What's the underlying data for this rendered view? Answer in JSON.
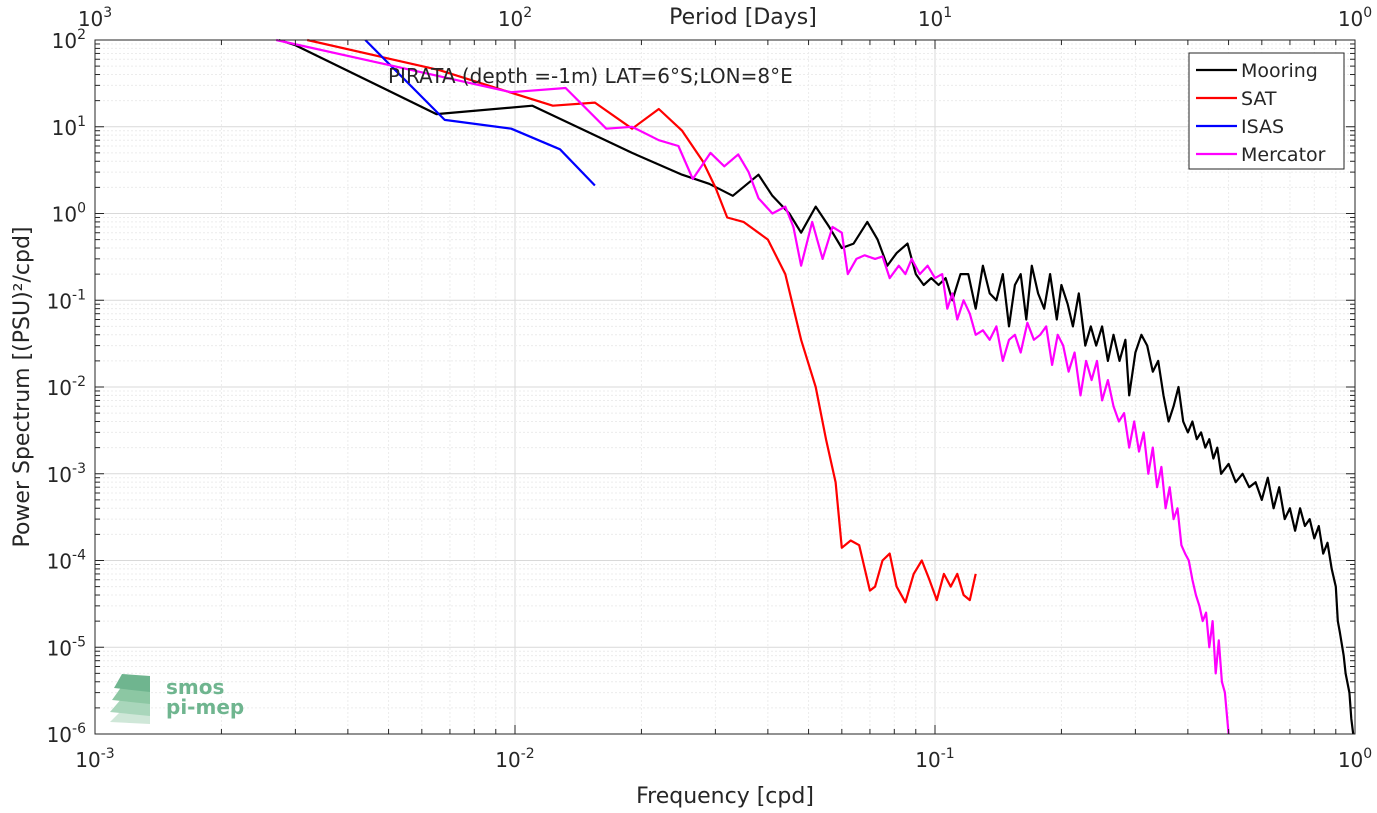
{
  "chart_data": {
    "type": "line",
    "title": "PIRATA (depth =-1m) LAT=6°S;LON=8°E",
    "xlabel": "Frequency [cpd]",
    "ylabel": "Power Spectrum [(PSU)²/cpd]",
    "top_xlabel": "Period [Days]",
    "x_scale": "log",
    "y_scale": "log",
    "xlim": [
      0.001,
      1
    ],
    "ylim": [
      1e-06,
      100
    ],
    "grid": true,
    "legend_position": "top-right",
    "x_ticks": [
      {
        "value": 0.001,
        "base": "10",
        "exp": "-3"
      },
      {
        "value": 0.01,
        "base": "10",
        "exp": "-2"
      },
      {
        "value": 0.1,
        "base": "10",
        "exp": "-1"
      },
      {
        "value": 1,
        "base": "10",
        "exp": "0"
      }
    ],
    "top_ticks": [
      {
        "value": 0.001,
        "base": "10",
        "exp": "3"
      },
      {
        "value": 0.01,
        "base": "10",
        "exp": "2"
      },
      {
        "value": 0.1,
        "base": "10",
        "exp": "1"
      },
      {
        "value": 1,
        "base": "10",
        "exp": "0"
      }
    ],
    "y_ticks": [
      {
        "value": 100,
        "base": "10",
        "exp": "2"
      },
      {
        "value": 10,
        "base": "10",
        "exp": "1"
      },
      {
        "value": 1,
        "base": "10",
        "exp": "0"
      },
      {
        "value": 0.1,
        "base": "10",
        "exp": "-1"
      },
      {
        "value": 0.01,
        "base": "10",
        "exp": "-2"
      },
      {
        "value": 0.001,
        "base": "10",
        "exp": "-3"
      },
      {
        "value": 0.0001,
        "base": "10",
        "exp": "-4"
      },
      {
        "value": 1e-05,
        "base": "10",
        "exp": "-5"
      },
      {
        "value": 1e-06,
        "base": "10",
        "exp": "-6"
      }
    ],
    "series": [
      {
        "name": "Mooring",
        "color": "#000000",
        "points": [
          [
            0.00274,
            100
          ],
          [
            0.003,
            87
          ],
          [
            0.0065,
            14
          ],
          [
            0.011,
            17.5
          ],
          [
            0.019,
            5
          ],
          [
            0.025,
            2.8
          ],
          [
            0.029,
            2.2
          ],
          [
            0.033,
            1.6
          ],
          [
            0.038,
            2.8
          ],
          [
            0.041,
            1.6
          ],
          [
            0.045,
            1
          ],
          [
            0.048,
            0.6
          ],
          [
            0.052,
            1.2
          ],
          [
            0.056,
            0.7
          ],
          [
            0.06,
            0.4
          ],
          [
            0.064,
            0.45
          ],
          [
            0.069,
            0.8
          ],
          [
            0.073,
            0.5
          ],
          [
            0.077,
            0.25
          ],
          [
            0.081,
            0.35
          ],
          [
            0.086,
            0.45
          ],
          [
            0.09,
            0.2
          ],
          [
            0.094,
            0.15
          ],
          [
            0.098,
            0.18
          ],
          [
            0.102,
            0.15
          ],
          [
            0.106,
            0.18
          ],
          [
            0.11,
            0.1
          ],
          [
            0.115,
            0.2
          ],
          [
            0.12,
            0.2
          ],
          [
            0.125,
            0.08
          ],
          [
            0.13,
            0.25
          ],
          [
            0.135,
            0.12
          ],
          [
            0.14,
            0.1
          ],
          [
            0.145,
            0.2
          ],
          [
            0.15,
            0.05
          ],
          [
            0.155,
            0.15
          ],
          [
            0.16,
            0.2
          ],
          [
            0.165,
            0.06
          ],
          [
            0.17,
            0.25
          ],
          [
            0.176,
            0.12
          ],
          [
            0.182,
            0.08
          ],
          [
            0.188,
            0.2
          ],
          [
            0.195,
            0.06
          ],
          [
            0.2,
            0.15
          ],
          [
            0.207,
            0.09
          ],
          [
            0.213,
            0.05
          ],
          [
            0.22,
            0.12
          ],
          [
            0.228,
            0.03
          ],
          [
            0.235,
            0.05
          ],
          [
            0.242,
            0.03
          ],
          [
            0.25,
            0.05
          ],
          [
            0.258,
            0.02
          ],
          [
            0.266,
            0.04
          ],
          [
            0.275,
            0.02
          ],
          [
            0.284,
            0.035
          ],
          [
            0.29,
            0.008
          ],
          [
            0.3,
            0.025
          ],
          [
            0.31,
            0.04
          ],
          [
            0.32,
            0.03
          ],
          [
            0.33,
            0.015
          ],
          [
            0.34,
            0.02
          ],
          [
            0.35,
            0.008
          ],
          [
            0.36,
            0.004
          ],
          [
            0.37,
            0.006
          ],
          [
            0.38,
            0.01
          ],
          [
            0.39,
            0.004
          ],
          [
            0.4,
            0.003
          ],
          [
            0.41,
            0.004
          ],
          [
            0.42,
            0.0025
          ],
          [
            0.43,
            0.003
          ],
          [
            0.44,
            0.002
          ],
          [
            0.45,
            0.0025
          ],
          [
            0.46,
            0.0015
          ],
          [
            0.47,
            0.002
          ],
          [
            0.48,
            0.001
          ],
          [
            0.5,
            0.0013
          ],
          [
            0.52,
            0.0008
          ],
          [
            0.54,
            0.001
          ],
          [
            0.56,
            0.0007
          ],
          [
            0.58,
            0.0008
          ],
          [
            0.6,
            0.0005
          ],
          [
            0.62,
            0.0009
          ],
          [
            0.64,
            0.0004
          ],
          [
            0.66,
            0.0007
          ],
          [
            0.68,
            0.0003
          ],
          [
            0.7,
            0.0004
          ],
          [
            0.72,
            0.00022
          ],
          [
            0.74,
            0.0004
          ],
          [
            0.76,
            0.00025
          ],
          [
            0.78,
            0.0003
          ],
          [
            0.8,
            0.00018
          ],
          [
            0.82,
            0.00025
          ],
          [
            0.84,
            0.00012
          ],
          [
            0.86,
            0.00016
          ],
          [
            0.88,
            8e-05
          ],
          [
            0.9,
            5e-05
          ],
          [
            0.91,
            2e-05
          ],
          [
            0.92,
            1.5e-05
          ],
          [
            0.94,
            8e-06
          ],
          [
            0.95,
            5e-06
          ],
          [
            0.97,
            3e-06
          ],
          [
            0.98,
            1.5e-06
          ],
          [
            0.99,
            1e-06
          ]
        ]
      },
      {
        "name": "SAT",
        "color": "#ff0000",
        "points": [
          [
            0.0032,
            100
          ],
          [
            0.0066,
            45
          ],
          [
            0.0123,
            17.5
          ],
          [
            0.0155,
            19
          ],
          [
            0.019,
            9.5
          ],
          [
            0.022,
            16
          ],
          [
            0.025,
            9
          ],
          [
            0.028,
            4
          ],
          [
            0.03,
            2
          ],
          [
            0.032,
            0.9
          ],
          [
            0.035,
            0.8
          ],
          [
            0.04,
            0.5
          ],
          [
            0.044,
            0.2
          ],
          [
            0.048,
            0.035
          ],
          [
            0.052,
            0.01
          ],
          [
            0.055,
            0.0025
          ],
          [
            0.058,
            0.0008
          ],
          [
            0.06,
            0.00014
          ],
          [
            0.063,
            0.00017
          ],
          [
            0.066,
            0.00015
          ],
          [
            0.07,
            4.5e-05
          ],
          [
            0.072,
            5e-05
          ],
          [
            0.075,
            0.0001
          ],
          [
            0.078,
            0.00012
          ],
          [
            0.081,
            5e-05
          ],
          [
            0.085,
            3.3e-05
          ],
          [
            0.089,
            7e-05
          ],
          [
            0.093,
            0.0001
          ],
          [
            0.097,
            6e-05
          ],
          [
            0.101,
            3.5e-05
          ],
          [
            0.105,
            7e-05
          ],
          [
            0.109,
            5e-05
          ],
          [
            0.113,
            7e-05
          ],
          [
            0.117,
            4e-05
          ],
          [
            0.121,
            3.5e-05
          ],
          [
            0.125,
            7e-05
          ]
        ]
      },
      {
        "name": "ISAS",
        "color": "#0000ff",
        "points": [
          [
            0.0044,
            100
          ],
          [
            0.0068,
            12
          ],
          [
            0.0098,
            9.5
          ],
          [
            0.0128,
            5.5
          ],
          [
            0.0155,
            2.1
          ]
        ]
      },
      {
        "name": "Mercator",
        "color": "#ff00ff",
        "points": [
          [
            0.0027,
            100
          ],
          [
            0.0098,
            25
          ],
          [
            0.0132,
            28
          ],
          [
            0.0165,
            9.5
          ],
          [
            0.019,
            10
          ],
          [
            0.022,
            7
          ],
          [
            0.0245,
            6
          ],
          [
            0.0265,
            2.5
          ],
          [
            0.0292,
            5
          ],
          [
            0.0315,
            3.5
          ],
          [
            0.034,
            4.8
          ],
          [
            0.036,
            3
          ],
          [
            0.038,
            1.5
          ],
          [
            0.041,
            1
          ],
          [
            0.044,
            1.2
          ],
          [
            0.046,
            0.7
          ],
          [
            0.048,
            0.25
          ],
          [
            0.051,
            0.8
          ],
          [
            0.054,
            0.3
          ],
          [
            0.057,
            0.7
          ],
          [
            0.06,
            0.6
          ],
          [
            0.062,
            0.2
          ],
          [
            0.065,
            0.3
          ],
          [
            0.068,
            0.33
          ],
          [
            0.072,
            0.3
          ],
          [
            0.075,
            0.32
          ],
          [
            0.078,
            0.18
          ],
          [
            0.082,
            0.25
          ],
          [
            0.085,
            0.2
          ],
          [
            0.088,
            0.3
          ],
          [
            0.092,
            0.2
          ],
          [
            0.096,
            0.25
          ],
          [
            0.1,
            0.18
          ],
          [
            0.104,
            0.2
          ],
          [
            0.107,
            0.08
          ],
          [
            0.11,
            0.12
          ],
          [
            0.113,
            0.06
          ],
          [
            0.117,
            0.1
          ],
          [
            0.121,
            0.07
          ],
          [
            0.125,
            0.04
          ],
          [
            0.13,
            0.045
          ],
          [
            0.135,
            0.035
          ],
          [
            0.14,
            0.05
          ],
          [
            0.145,
            0.02
          ],
          [
            0.15,
            0.035
          ],
          [
            0.155,
            0.04
          ],
          [
            0.16,
            0.025
          ],
          [
            0.166,
            0.055
          ],
          [
            0.172,
            0.035
          ],
          [
            0.178,
            0.04
          ],
          [
            0.184,
            0.05
          ],
          [
            0.19,
            0.018
          ],
          [
            0.196,
            0.04
          ],
          [
            0.202,
            0.03
          ],
          [
            0.208,
            0.015
          ],
          [
            0.215,
            0.025
          ],
          [
            0.222,
            0.008
          ],
          [
            0.229,
            0.02
          ],
          [
            0.236,
            0.012
          ],
          [
            0.243,
            0.02
          ],
          [
            0.25,
            0.007
          ],
          [
            0.258,
            0.012
          ],
          [
            0.266,
            0.006
          ],
          [
            0.274,
            0.004
          ],
          [
            0.282,
            0.005
          ],
          [
            0.29,
            0.002
          ],
          [
            0.298,
            0.004
          ],
          [
            0.306,
            0.0018
          ],
          [
            0.314,
            0.003
          ],
          [
            0.322,
            0.001
          ],
          [
            0.33,
            0.002
          ],
          [
            0.338,
            0.0007
          ],
          [
            0.346,
            0.0012
          ],
          [
            0.354,
            0.0004
          ],
          [
            0.362,
            0.0007
          ],
          [
            0.37,
            0.0003
          ],
          [
            0.378,
            0.0004
          ],
          [
            0.386,
            0.00015
          ],
          [
            0.394,
            0.00012
          ],
          [
            0.402,
            0.0001
          ],
          [
            0.41,
            6e-05
          ],
          [
            0.418,
            4e-05
          ],
          [
            0.426,
            3e-05
          ],
          [
            0.434,
            2e-05
          ],
          [
            0.442,
            2.5e-05
          ],
          [
            0.45,
            1e-05
          ],
          [
            0.458,
            2e-05
          ],
          [
            0.466,
            5e-06
          ],
          [
            0.474,
            1.2e-05
          ],
          [
            0.482,
            4e-06
          ],
          [
            0.49,
            3e-06
          ],
          [
            0.5,
            1e-06
          ]
        ]
      }
    ]
  },
  "watermark": {
    "line1": "smos",
    "line2": "pi-mep",
    "color": "#6fb58f"
  }
}
